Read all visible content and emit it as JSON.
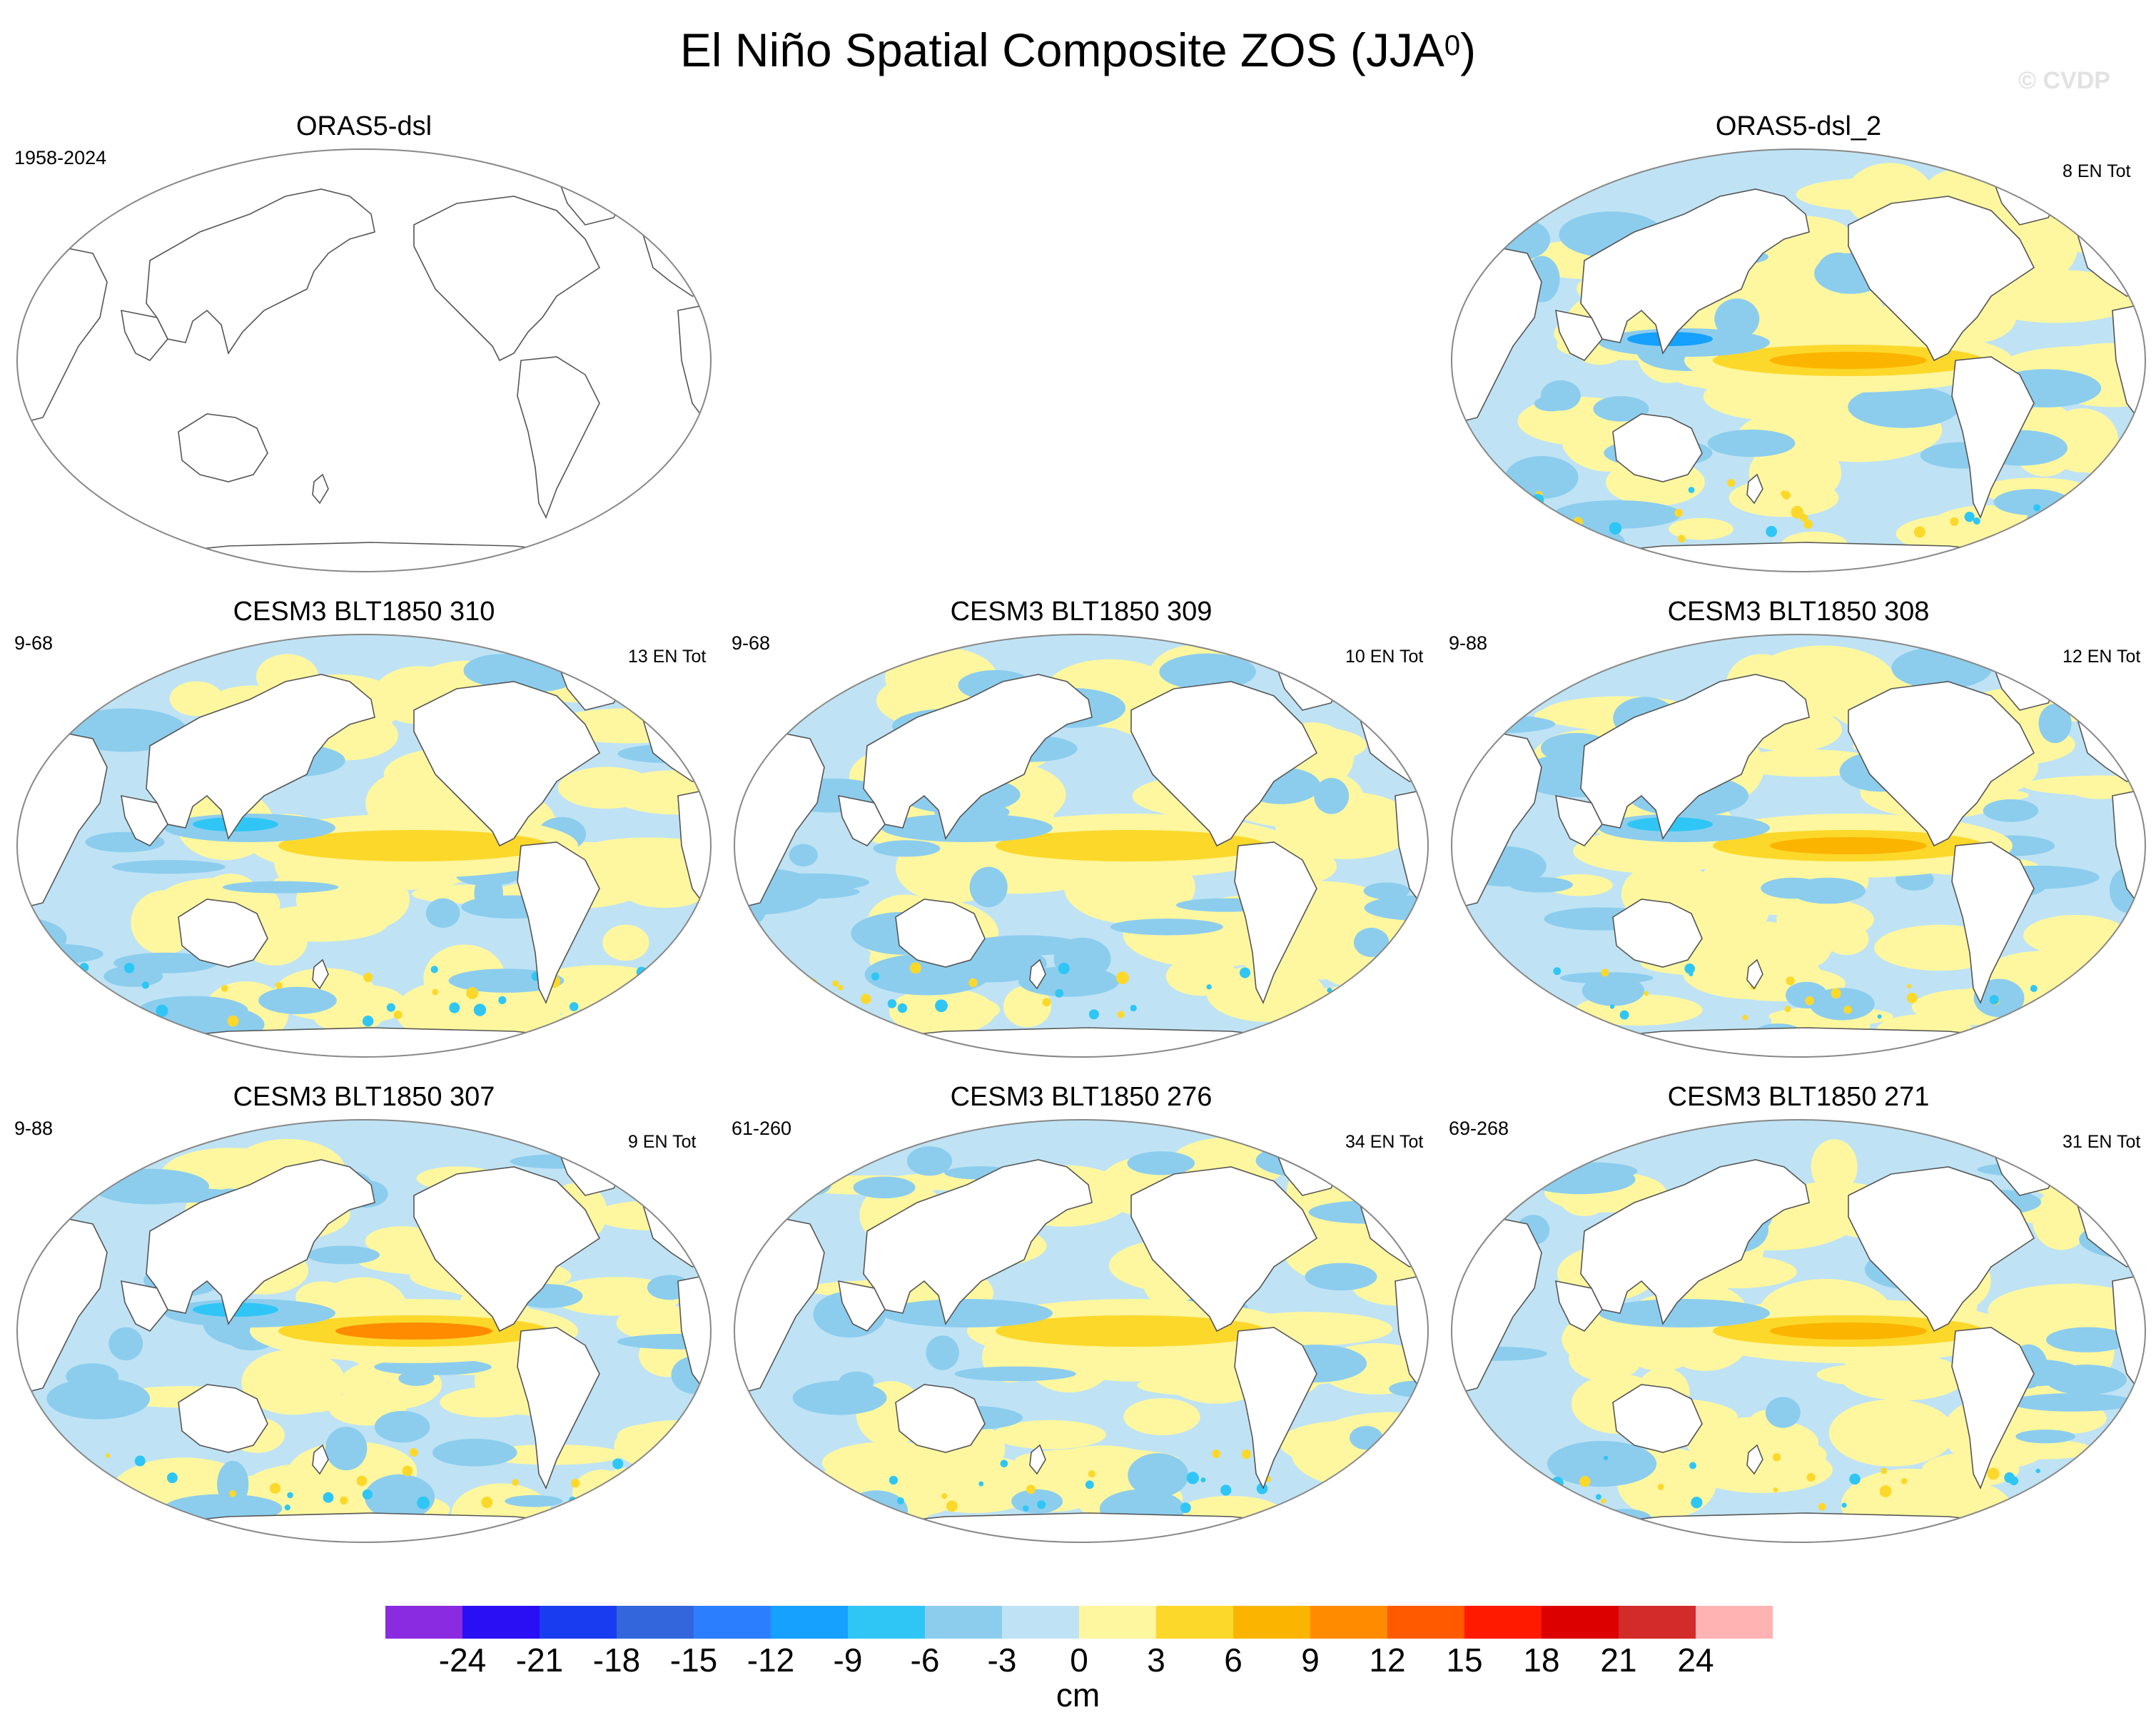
{
  "figure": {
    "title_main": "El Niño Spatial Composite ZOS (JJA",
    "title_superscript": "0",
    "title_close": ")",
    "watermark": "© CVDP",
    "colorbar_unit": "cm"
  },
  "chart_data": [
    {
      "type": "heatmap",
      "title": "ORAS5-dsl",
      "left_label": "1958-2024",
      "right_label": "",
      "variable": "ZOS",
      "has_data": false
    },
    {
      "type": "heatmap",
      "title": "ORAS5-dsl_2",
      "left_label": "",
      "right_label": "8 EN Tot",
      "variable": "ZOS",
      "has_data": true,
      "pacific_peak": 9,
      "west_pacific_min": -12
    },
    {
      "type": "heatmap",
      "title": "CESM3 BLT1850 310",
      "left_label": "9-68",
      "right_label": "13 EN Tot",
      "variable": "ZOS",
      "has_data": true,
      "pacific_peak": 6,
      "west_pacific_min": -9
    },
    {
      "type": "heatmap",
      "title": "CESM3 BLT1850 309",
      "left_label": "9-68",
      "right_label": "10 EN Tot",
      "variable": "ZOS",
      "has_data": true,
      "pacific_peak": 6,
      "west_pacific_min": -6
    },
    {
      "type": "heatmap",
      "title": "CESM3 BLT1850 308",
      "left_label": "9-88",
      "right_label": "12 EN Tot",
      "variable": "ZOS",
      "has_data": true,
      "pacific_peak": 9,
      "west_pacific_min": -9
    },
    {
      "type": "heatmap",
      "title": "CESM3 BLT1850 307",
      "left_label": "9-88",
      "right_label": "9 EN Tot",
      "variable": "ZOS",
      "has_data": true,
      "pacific_peak": 12,
      "west_pacific_min": -9
    },
    {
      "type": "heatmap",
      "title": "CESM3 BLT1850 276",
      "left_label": "61-260",
      "right_label": "34 EN Tot",
      "variable": "ZOS",
      "has_data": true,
      "pacific_peak": 6,
      "west_pacific_min": -6
    },
    {
      "type": "heatmap",
      "title": "CESM3 BLT1850 271",
      "left_label": "69-268",
      "right_label": "31 EN Tot",
      "variable": "ZOS",
      "has_data": true,
      "pacific_peak": 9,
      "west_pacific_min": -6
    }
  ],
  "colorbar": {
    "levels": [
      "-24",
      "-21",
      "-18",
      "-15",
      "-12",
      "-9",
      "-6",
      "-3",
      "0",
      "3",
      "6",
      "9",
      "12",
      "15",
      "18",
      "21",
      "24"
    ],
    "colors": [
      "#8a2be2",
      "#2a0ff5",
      "#1a3cf0",
      "#3366dd",
      "#2b7fff",
      "#16a0ff",
      "#2fc6f5",
      "#8ccdee",
      "#bfe3f4",
      "#fff79f",
      "#fcd82b",
      "#fbb400",
      "#ff8c00",
      "#ff5a00",
      "#ff1a00",
      "#dd0000",
      "#d32a2a",
      "#ffb3b3"
    ]
  }
}
